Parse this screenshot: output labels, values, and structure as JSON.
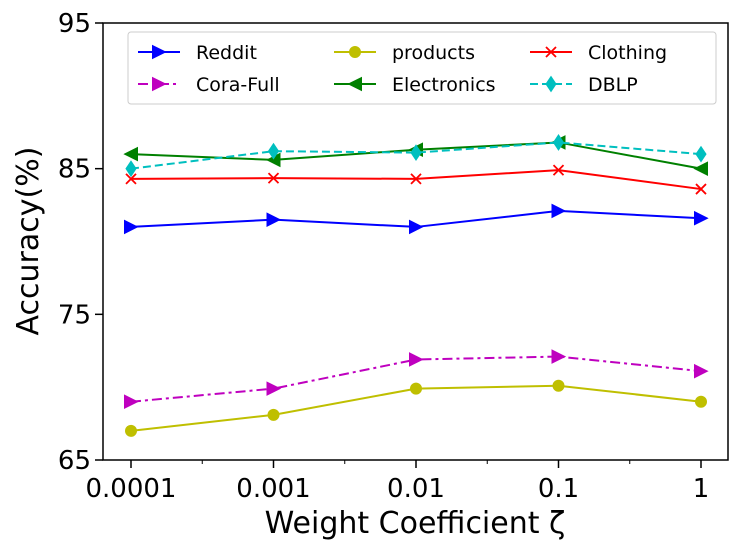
{
  "chart_data": {
    "type": "line",
    "xlabel": "Weight Coefficient ζ",
    "ylabel": "Accuracy(%)",
    "x": [
      "0.0001",
      "0.001",
      "0.01",
      "0.1",
      "1"
    ],
    "ylim": [
      65,
      95
    ],
    "yticks": [
      "65",
      "75",
      "85",
      "95"
    ],
    "grid": false,
    "legend_position": "top",
    "series": [
      {
        "name": "Reddit",
        "color": "#0000ff",
        "marker": "triangle-right",
        "dash": "solid",
        "values": [
          81.0,
          81.5,
          81.0,
          82.1,
          81.6
        ]
      },
      {
        "name": "products",
        "color": "#bfbf00",
        "marker": "circle",
        "dash": "solid",
        "values": [
          67.0,
          68.1,
          69.9,
          70.1,
          69.0
        ]
      },
      {
        "name": "Clothing",
        "color": "#ff0000",
        "marker": "x",
        "dash": "solid",
        "values": [
          84.3,
          84.35,
          84.3,
          84.9,
          83.6
        ]
      },
      {
        "name": "Cora-Full",
        "color": "#bf00bf",
        "marker": "triangle-right",
        "dash": "dashdot",
        "values": [
          69.0,
          69.9,
          71.9,
          72.1,
          71.1
        ]
      },
      {
        "name": "Electronics",
        "color": "#008000",
        "marker": "triangle-left",
        "dash": "solid",
        "values": [
          86.0,
          85.6,
          86.3,
          86.8,
          85.0
        ]
      },
      {
        "name": "DBLP",
        "color": "#00bfbf",
        "marker": "diamond",
        "dash": "dashed",
        "values": [
          85.0,
          86.2,
          86.1,
          86.8,
          86.0
        ]
      }
    ]
  }
}
